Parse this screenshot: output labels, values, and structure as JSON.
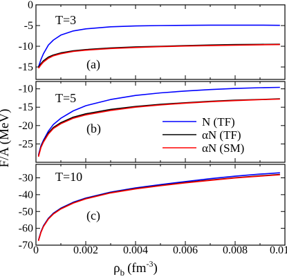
{
  "figure": {
    "ylabel": "F/A (MeV)",
    "xlabel_main": "ρ",
    "xlabel_sub": "b",
    "xlabel_unit": "(fm",
    "xlabel_exp": "-3",
    "xlabel_close": ")",
    "xticks": [
      "0",
      "0.002",
      "0.004",
      "0.006",
      "0.008",
      "0.01"
    ]
  },
  "legend": {
    "entries": [
      {
        "label": "N (TF)",
        "color": "#0000ff"
      },
      {
        "label": "αN (TF)",
        "color": "#000000"
      },
      {
        "label": "αN (SM)",
        "color": "#ff0000"
      }
    ]
  },
  "chart_data": [
    {
      "type": "line",
      "temp_label": "T=3",
      "panel_label": "(a)",
      "xlim": [
        0,
        0.01
      ],
      "ylim": [
        -18,
        0
      ],
      "yticks": [
        "0",
        "-5",
        "-10",
        "-15"
      ],
      "series": [
        {
          "name": "N (TF)",
          "color": "#0000ff",
          "x": [
            0.0001,
            0.0002,
            0.0003,
            0.0005,
            0.0007,
            0.001,
            0.0015,
            0.002,
            0.003,
            0.004,
            0.005,
            0.006,
            0.007,
            0.008,
            0.009,
            0.0098
          ],
          "y": [
            -15.0,
            -13.2,
            -11.8,
            -9.7,
            -8.5,
            -7.3,
            -6.3,
            -5.8,
            -5.3,
            -5.1,
            -5.0,
            -4.95,
            -4.9,
            -4.9,
            -4.9,
            -4.95
          ]
        },
        {
          "name": "αN (TF)",
          "color": "#000000",
          "x": [
            0.0001,
            0.0002,
            0.0003,
            0.0005,
            0.0007,
            0.001,
            0.0015,
            0.002,
            0.003,
            0.004,
            0.005,
            0.006,
            0.007,
            0.008,
            0.009,
            0.0098
          ],
          "y": [
            -15.0,
            -14.2,
            -13.5,
            -12.6,
            -12.1,
            -11.6,
            -11.1,
            -10.8,
            -10.4,
            -10.15,
            -10.0,
            -9.85,
            -9.7,
            -9.6,
            -9.55,
            -9.5
          ]
        },
        {
          "name": "αN (SM)",
          "color": "#ff0000",
          "x": [
            0.0001,
            0.0002,
            0.0003,
            0.0005,
            0.0007,
            0.001,
            0.0015,
            0.002,
            0.003,
            0.004,
            0.005,
            0.006,
            0.007,
            0.008,
            0.009,
            0.0098
          ],
          "y": [
            -15.3,
            -14.5,
            -13.8,
            -12.9,
            -12.3,
            -11.8,
            -11.25,
            -10.95,
            -10.55,
            -10.3,
            -10.1,
            -9.95,
            -9.85,
            -9.75,
            -9.65,
            -9.6
          ]
        }
      ]
    },
    {
      "type": "line",
      "temp_label": "T=5",
      "panel_label": "(b)",
      "xlim": [
        0,
        0.01
      ],
      "ylim": [
        -30,
        -8
      ],
      "yticks": [
        "-10",
        "-15",
        "-20",
        "-25"
      ],
      "series": [
        {
          "name": "N (TF)",
          "color": "#0000ff",
          "x": [
            0.0001,
            0.0002,
            0.0003,
            0.0005,
            0.0007,
            0.001,
            0.0015,
            0.002,
            0.003,
            0.004,
            0.005,
            0.006,
            0.007,
            0.008,
            0.009,
            0.0098
          ],
          "y": [
            -28.0,
            -25.5,
            -24.0,
            -21.5,
            -19.7,
            -18.0,
            -16.0,
            -14.6,
            -12.9,
            -11.8,
            -11.1,
            -10.6,
            -10.2,
            -9.9,
            -9.7,
            -9.6
          ]
        },
        {
          "name": "αN (TF)",
          "color": "#000000",
          "x": [
            0.0001,
            0.0002,
            0.0003,
            0.0005,
            0.0007,
            0.001,
            0.0015,
            0.002,
            0.003,
            0.004,
            0.005,
            0.006,
            0.007,
            0.008,
            0.009,
            0.0098
          ],
          "y": [
            -28.3,
            -25.8,
            -24.3,
            -22.0,
            -20.5,
            -19.2,
            -17.7,
            -16.8,
            -15.6,
            -14.8,
            -14.2,
            -13.8,
            -13.4,
            -13.1,
            -12.9,
            -12.7
          ]
        },
        {
          "name": "αN (SM)",
          "color": "#ff0000",
          "x": [
            0.0001,
            0.0002,
            0.0003,
            0.0005,
            0.0007,
            0.001,
            0.0015,
            0.002,
            0.003,
            0.004,
            0.005,
            0.006,
            0.007,
            0.008,
            0.009,
            0.0098
          ],
          "y": [
            -28.5,
            -26.0,
            -24.5,
            -22.3,
            -20.8,
            -19.5,
            -18.0,
            -17.1,
            -15.9,
            -15.0,
            -14.4,
            -13.9,
            -13.5,
            -13.2,
            -12.95,
            -12.8
          ]
        }
      ]
    },
    {
      "type": "line",
      "temp_label": "T=10",
      "panel_label": "(c)",
      "xlim": [
        0,
        0.01
      ],
      "ylim": [
        -70,
        -22
      ],
      "yticks": [
        "-30",
        "-40",
        "-50",
        "-60",
        "-70"
      ],
      "series": [
        {
          "name": "N (TF)",
          "color": "#0000ff",
          "x": [
            0.0001,
            0.0002,
            0.0003,
            0.0005,
            0.0007,
            0.001,
            0.0015,
            0.002,
            0.003,
            0.004,
            0.005,
            0.006,
            0.007,
            0.008,
            0.009,
            0.0098
          ],
          "y": [
            -67.0,
            -62.0,
            -58.5,
            -54.0,
            -51.0,
            -48.0,
            -44.5,
            -42.0,
            -38.5,
            -36.0,
            -34.0,
            -32.2,
            -30.5,
            -29.0,
            -27.8,
            -27.0
          ]
        },
        {
          "name": "αN (TF)",
          "color": "#000000",
          "x": [
            0.0001,
            0.0002,
            0.0003,
            0.0005,
            0.0007,
            0.001,
            0.0015,
            0.002,
            0.003,
            0.004,
            0.005,
            0.006,
            0.007,
            0.008,
            0.009,
            0.0098
          ],
          "y": [
            -67.3,
            -62.3,
            -58.8,
            -54.3,
            -51.3,
            -48.3,
            -44.8,
            -42.3,
            -38.8,
            -36.4,
            -34.5,
            -32.8,
            -31.3,
            -29.9,
            -28.8,
            -28.0
          ]
        },
        {
          "name": "αN (SM)",
          "color": "#ff0000",
          "x": [
            0.0001,
            0.0002,
            0.0003,
            0.0005,
            0.0007,
            0.001,
            0.0015,
            0.002,
            0.003,
            0.004,
            0.005,
            0.006,
            0.007,
            0.008,
            0.009,
            0.0098
          ],
          "y": [
            -67.5,
            -62.5,
            -59.0,
            -54.5,
            -51.5,
            -48.5,
            -45.0,
            -42.5,
            -39.0,
            -36.6,
            -34.7,
            -33.0,
            -31.5,
            -30.1,
            -29.0,
            -28.2
          ]
        }
      ]
    }
  ]
}
